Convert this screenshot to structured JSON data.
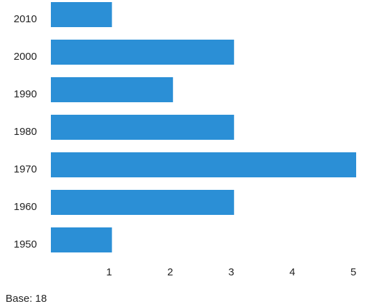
{
  "chart_data": {
    "type": "barh",
    "categories": [
      "2010",
      "2000",
      "1990",
      "1980",
      "1970",
      "1960",
      "1950"
    ],
    "values": [
      1,
      3,
      2,
      3,
      5,
      3,
      1
    ],
    "color": "#2b8fd6",
    "xlim": [
      0,
      5
    ],
    "xticks": [
      1,
      2,
      3,
      4,
      5
    ],
    "annotation": "Base: 18"
  }
}
